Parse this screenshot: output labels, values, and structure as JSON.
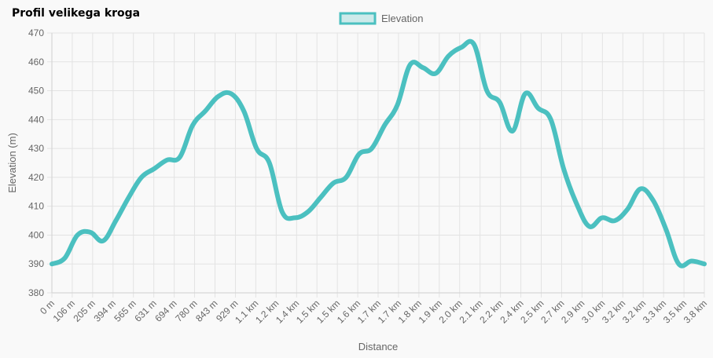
{
  "page_title": "Profil velikega kroga",
  "chart_data": {
    "type": "line",
    "xlabel": "Distance",
    "ylabel": "Elevation (m)",
    "ylim": [
      380,
      470
    ],
    "y_ticks": [
      470,
      460,
      450,
      440,
      430,
      420,
      410,
      400,
      390,
      380
    ],
    "x_ticks": [
      "0 m",
      "106 m",
      "205 m",
      "394 m",
      "565 m",
      "631 m",
      "694 m",
      "780 m",
      "843 m",
      "929 m",
      "1.1 km",
      "1.2 km",
      "1.4 km",
      "1.5 km",
      "1.5 km",
      "1.6 km",
      "1.7 km",
      "1.7 km",
      "1.8 km",
      "1.9 km",
      "2.0 km",
      "2.1 km",
      "2.2 km",
      "2.4 km",
      "2.5 km",
      "2.7 km",
      "2.9 km",
      "3.0 km",
      "3.2 km",
      "3.2 km",
      "3.3 km",
      "3.5 km",
      "3.8 km"
    ],
    "grid": true,
    "legend_position": "top",
    "series": [
      {
        "name": "Elevation",
        "color": "#4bc0c0",
        "values": [
          390,
          392,
          400,
          401,
          398,
          405,
          413,
          420,
          423,
          426,
          427,
          438,
          443,
          448,
          449,
          443,
          430,
          425,
          408,
          406,
          408,
          413,
          418,
          420,
          428,
          430,
          438,
          445,
          459,
          458,
          456,
          462,
          465,
          466,
          450,
          446,
          436,
          449,
          444,
          440,
          423,
          411,
          403,
          406,
          405,
          409,
          416,
          412,
          402,
          390,
          391,
          390
        ]
      }
    ]
  }
}
